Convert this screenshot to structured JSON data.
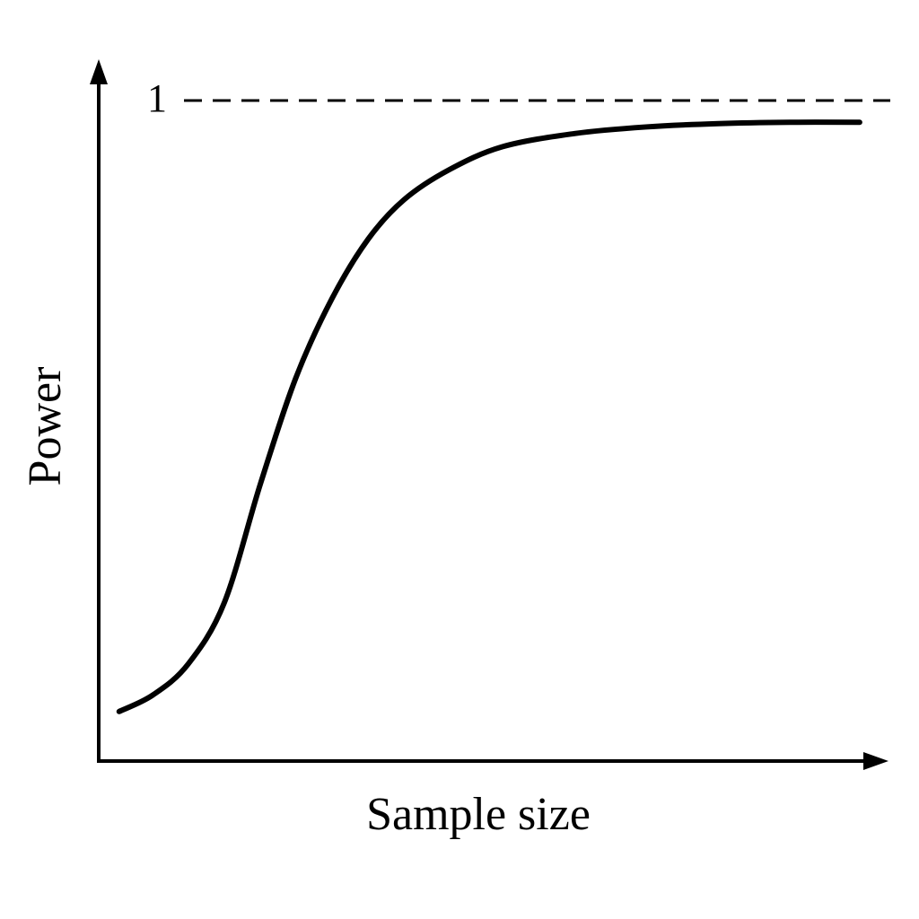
{
  "chart_data": {
    "type": "line",
    "x_label": "Sample size",
    "y_label": "Power",
    "x": [
      2.6,
      6.9,
      11.4,
      16,
      20.6,
      25.1,
      29.7,
      34.3,
      38.9,
      44.6,
      51.4,
      60.6,
      69.7,
      78.9,
      88,
      96.9
    ],
    "series": [
      {
        "color": "#000000",
        "values": [
          0.075,
          0.1,
          0.147,
          0.24,
          0.42,
          0.58,
          0.7,
          0.79,
          0.85,
          0.895,
          0.93,
          0.95,
          0.96,
          0.965,
          0.967,
          0.967
        ]
      }
    ],
    "xlim": [
      0,
      100
    ],
    "ylim": [
      0,
      1.06
    ],
    "yticks": [
      1
    ],
    "grid": "dashed"
  }
}
